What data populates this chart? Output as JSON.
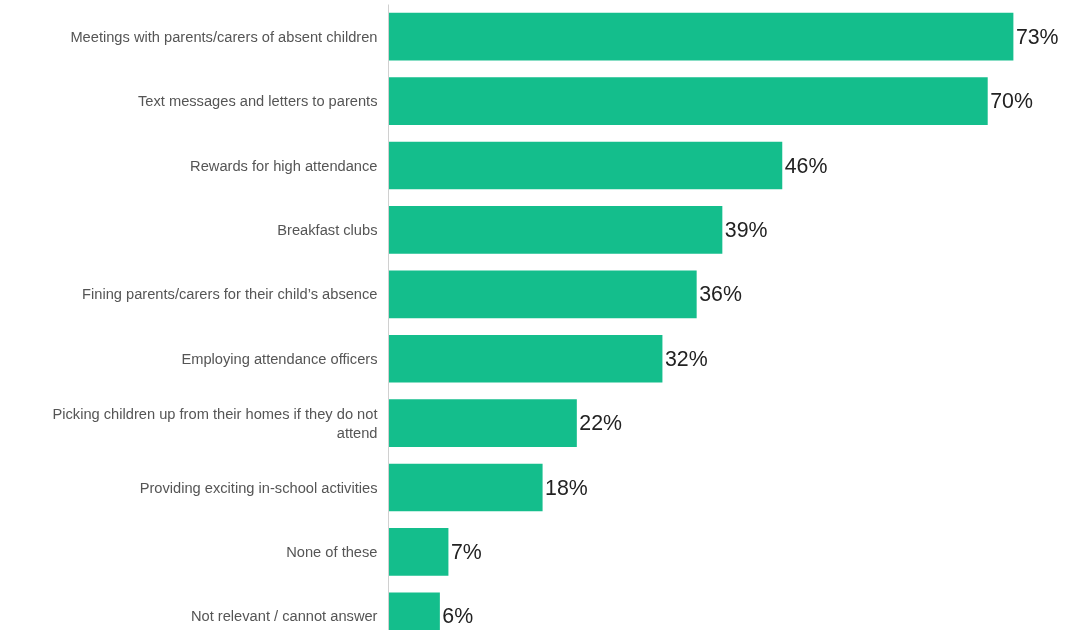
{
  "chart_data": {
    "type": "bar",
    "orientation": "horizontal",
    "color": "#14be8c",
    "categories": [
      "Meetings with parents/carers of absent children",
      "Text messages and letters to parents",
      "Rewards for high attendance",
      "Breakfast clubs",
      "Fining parents/carers for their child’s absence",
      "Employing attendance officers",
      "Picking children up from their homes if they do not attend",
      "Providing exciting in-school activities",
      "None of these",
      "Not relevant / cannot answer"
    ],
    "values": [
      73,
      70,
      46,
      39,
      36,
      32,
      22,
      18,
      7,
      6
    ],
    "value_labels": [
      "73%",
      "70%",
      "46%",
      "39%",
      "36%",
      "32%",
      "22%",
      "18%",
      "7%",
      "6%"
    ],
    "tick_labels": "y"
  }
}
